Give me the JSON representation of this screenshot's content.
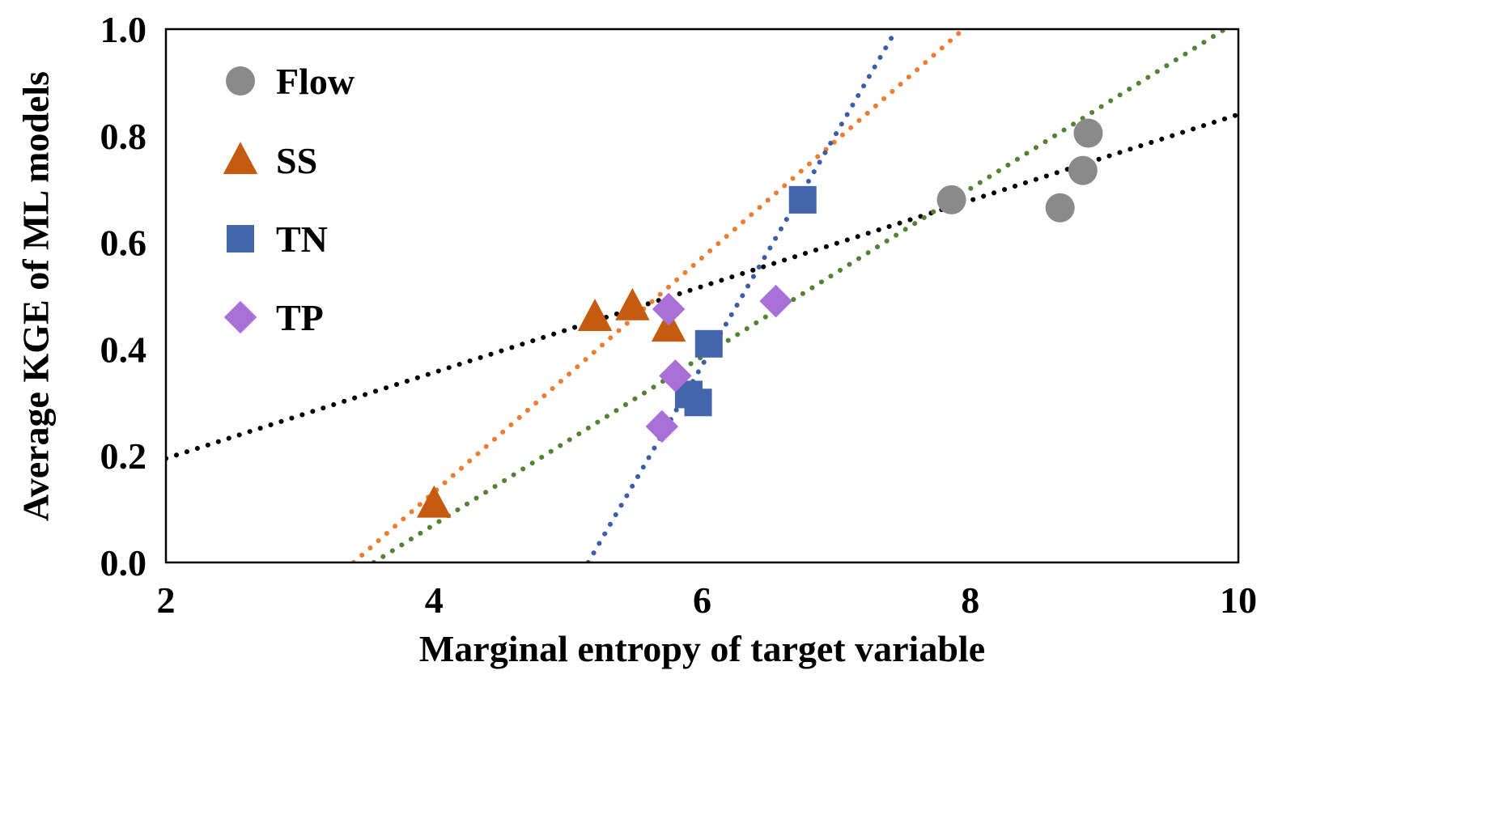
{
  "chart_data": {
    "type": "scatter",
    "title": "",
    "xlabel": "Marginal entropy of target variable",
    "ylabel": "Average KGE of ML models",
    "xlim": [
      2,
      10
    ],
    "ylim": [
      0.0,
      1.0
    ],
    "grid": false,
    "legend_position": "inside top-left",
    "xticks": [
      {
        "value": 2,
        "label": "2"
      },
      {
        "value": 4,
        "label": "4"
      },
      {
        "value": 6,
        "label": "6"
      },
      {
        "value": 8,
        "label": "8"
      },
      {
        "value": 10,
        "label": "10"
      }
    ],
    "yticks": [
      {
        "value": 0.0,
        "label": "0.0"
      },
      {
        "value": 0.2,
        "label": "0.2"
      },
      {
        "value": 0.4,
        "label": "0.4"
      },
      {
        "value": 0.6,
        "label": "0.6"
      },
      {
        "value": 0.8,
        "label": "0.8"
      },
      {
        "value": 1.0,
        "label": "1.0"
      }
    ],
    "series": [
      {
        "name": "Flow",
        "marker": "circle",
        "color": "#8a8a8a",
        "points": [
          [
            7.86,
            0.68
          ],
          [
            8.67,
            0.665
          ],
          [
            8.84,
            0.735
          ],
          [
            8.88,
            0.805
          ]
        ],
        "trendline": {
          "color": "#000000",
          "x1": 2.0,
          "y1": 0.195,
          "x2": 10.0,
          "y2": 0.84
        }
      },
      {
        "name": "SS",
        "marker": "triangle",
        "color": "#C55A11",
        "points": [
          [
            4.0,
            0.11
          ],
          [
            5.2,
            0.46
          ],
          [
            5.48,
            0.48
          ],
          [
            5.75,
            0.44
          ]
        ],
        "trendline": {
          "color": "#ED7D31",
          "x1": 3.4,
          "y1": 0.0,
          "x2": 7.95,
          "y2": 1.0
        }
      },
      {
        "name": "TN",
        "marker": "square",
        "color": "#4464AC",
        "points": [
          [
            5.9,
            0.315
          ],
          [
            5.97,
            0.3
          ],
          [
            6.05,
            0.41
          ],
          [
            6.75,
            0.68
          ]
        ],
        "trendline": {
          "color": "#3A5FA8",
          "x1": 5.15,
          "y1": 0.0,
          "x2": 7.45,
          "y2": 1.0
        }
      },
      {
        "name": "TP",
        "marker": "diamond",
        "color": "#A971D8",
        "points": [
          [
            5.7,
            0.255
          ],
          [
            5.8,
            0.35
          ],
          [
            5.75,
            0.475
          ],
          [
            6.55,
            0.49
          ]
        ],
        "trendline": {
          "color": "#548235",
          "x1": 3.55,
          "y1": 0.0,
          "x2": 9.9,
          "y2": 1.0
        }
      }
    ]
  }
}
